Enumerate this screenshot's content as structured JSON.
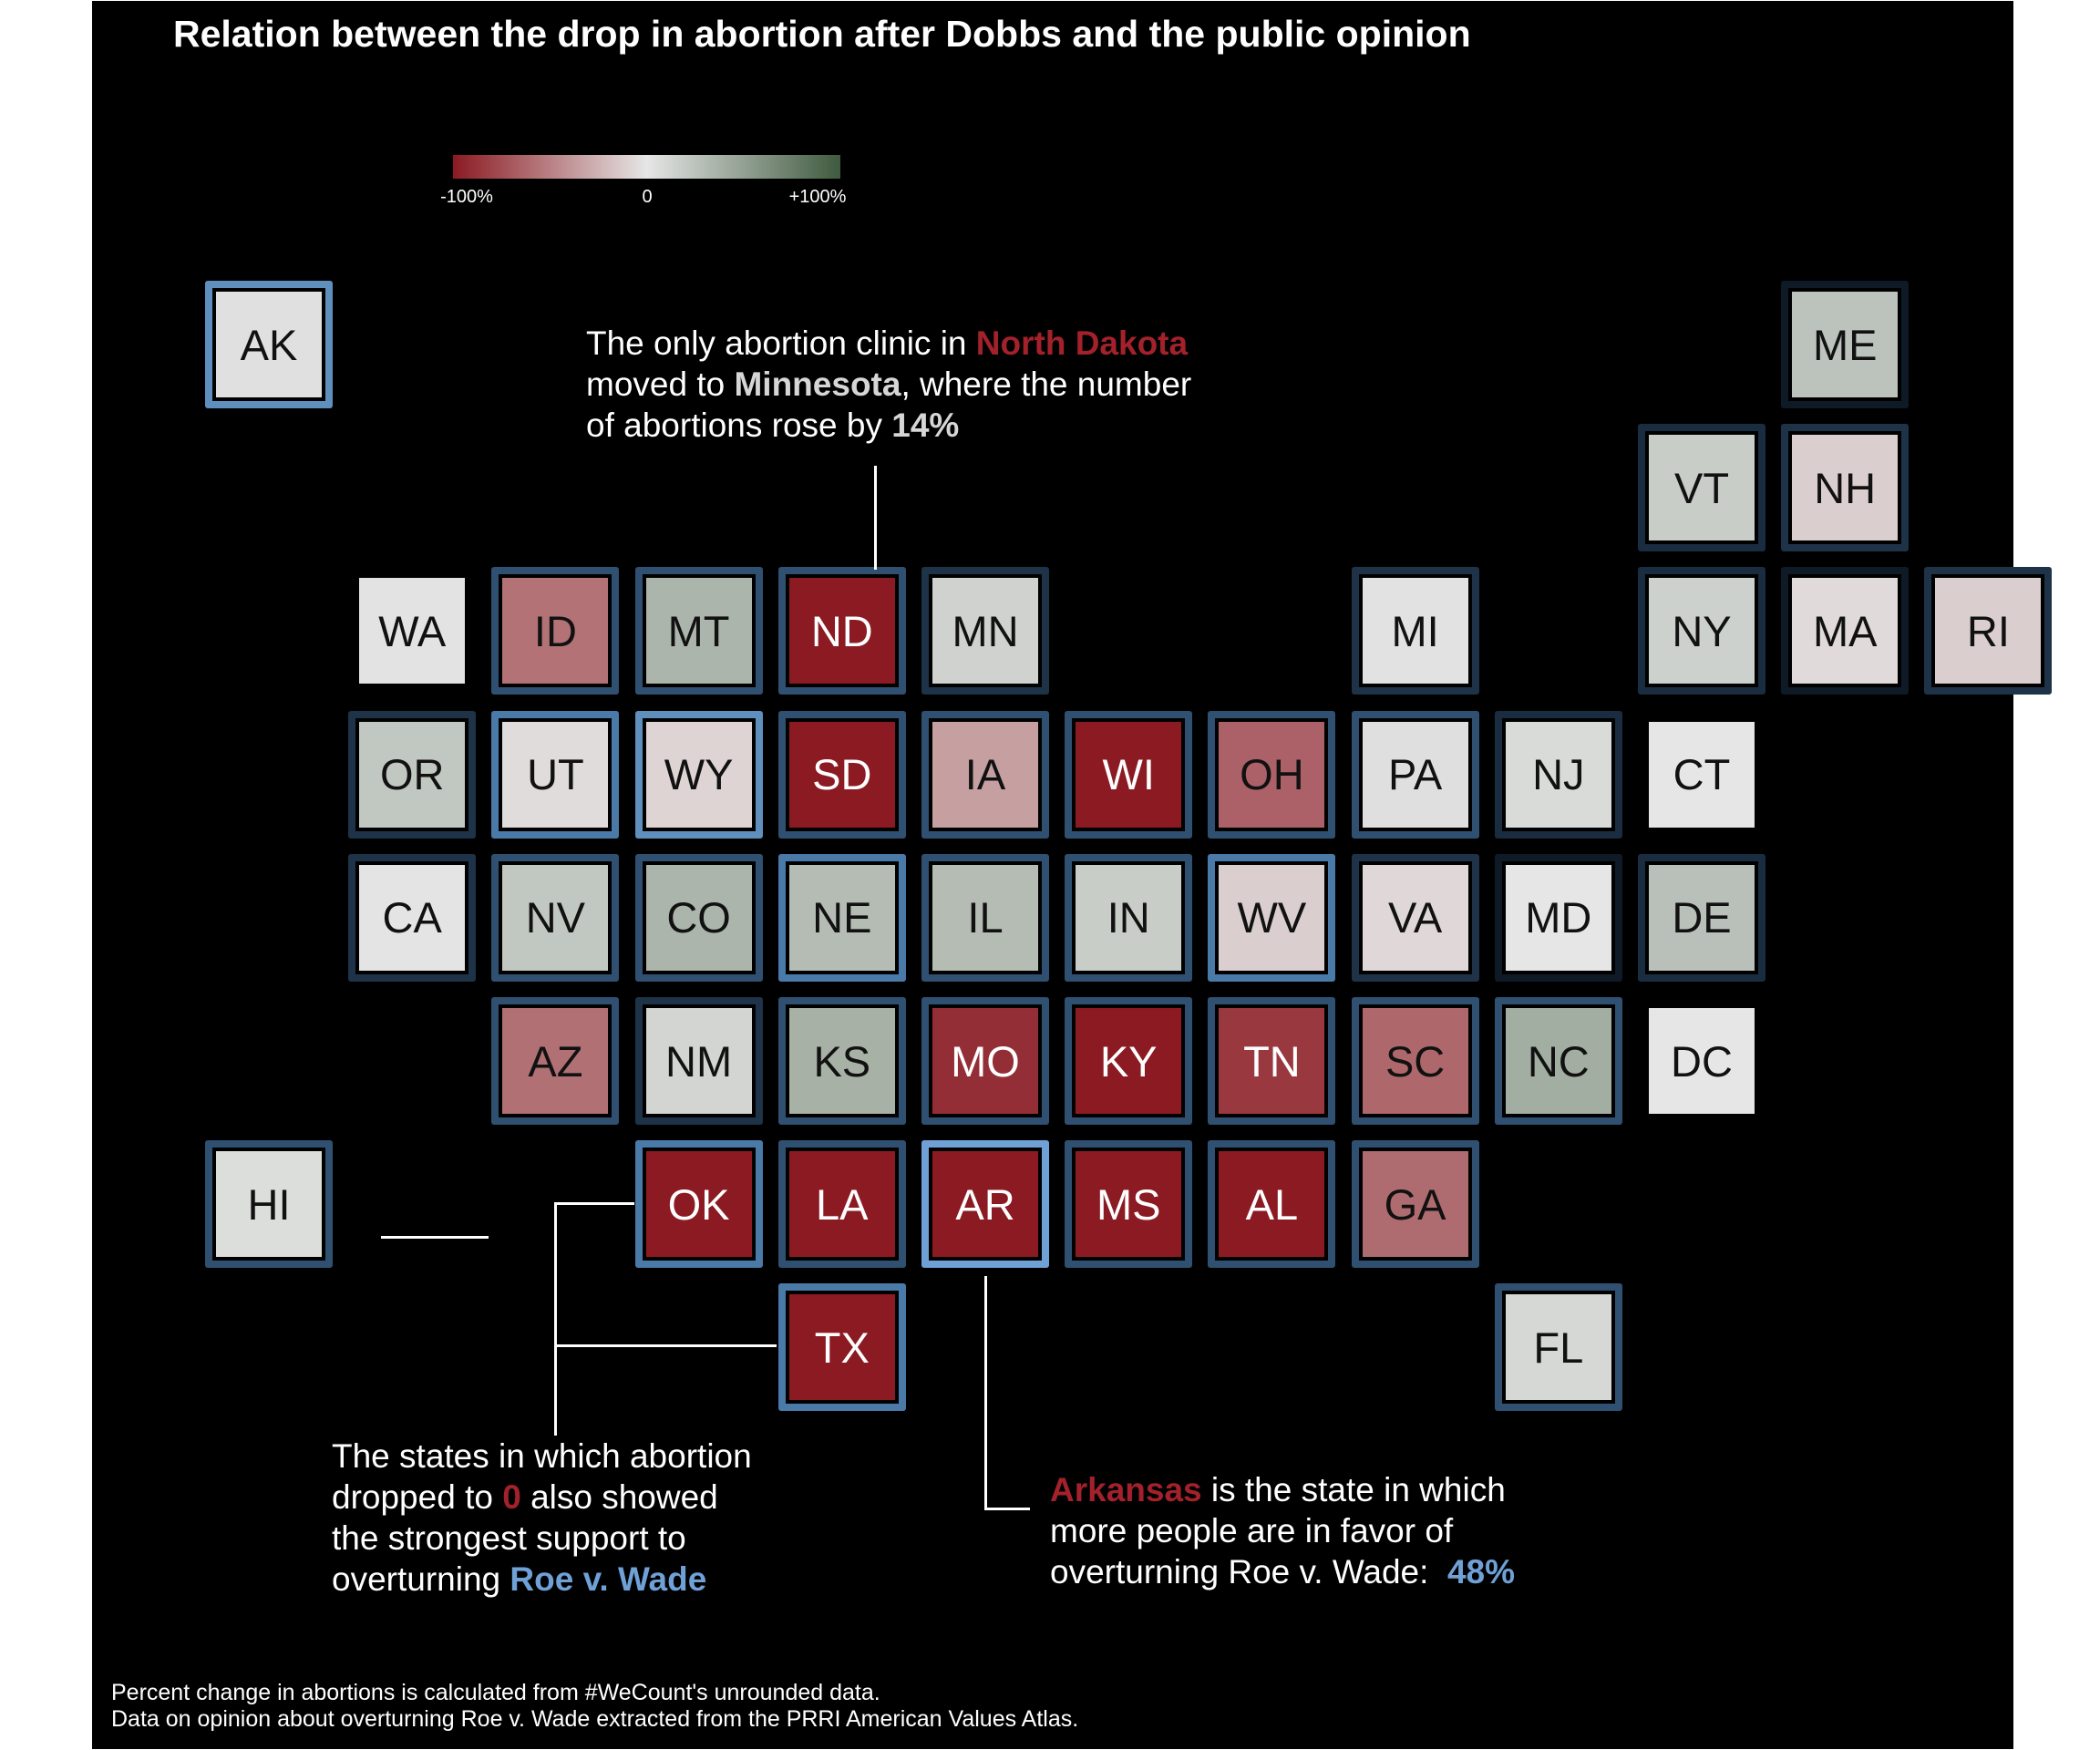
{
  "title": "Relation between the drop in abortion after Dobbs and the public opinion",
  "legend": {
    "label_min": "-100%",
    "label_mid": "0",
    "label_max": "+100%",
    "colors": [
      "#8b1a22",
      "#e6e6e6",
      "#3f5a3e"
    ]
  },
  "chart_data": {
    "type": "heatmap",
    "title": "Relation between the drop in abortion after Dobbs and the public opinion",
    "value_meaning": "approximate percent change in abortions (fill color, -100 to +100); outline color = support for overturning Roe v. Wade",
    "color_scale": {
      "min": -100,
      "mid": 0,
      "max": 100
    },
    "tiles": [
      {
        "state": "AK",
        "col": 0,
        "row": 0,
        "change": 4,
        "outline": "#5f8fbd"
      },
      {
        "state": "ME",
        "col": 11,
        "row": 0,
        "change": 25,
        "outline": "#0e1a26"
      },
      {
        "state": "VT",
        "col": 10,
        "row": 1,
        "change": 18,
        "outline": "#1a2c40"
      },
      {
        "state": "NH",
        "col": 11,
        "row": 1,
        "change": -12,
        "outline": "#1e3248"
      },
      {
        "state": "WA",
        "col": 1,
        "row": 2,
        "change": 2,
        "outline": "#000000"
      },
      {
        "state": "ID",
        "col": 2,
        "row": 2,
        "change": -57,
        "outline": "#2f5070"
      },
      {
        "state": "MT",
        "col": 3,
        "row": 2,
        "change": 35,
        "outline": "#2f5070"
      },
      {
        "state": "ND",
        "col": 4,
        "row": 2,
        "change": -100,
        "outline": "#2f5070"
      },
      {
        "state": "MN",
        "col": 5,
        "row": 2,
        "change": 14,
        "outline": "#1e3248"
      },
      {
        "state": "MI",
        "col": 8,
        "row": 2,
        "change": 3,
        "outline": "#1e3248"
      },
      {
        "state": "NY",
        "col": 10,
        "row": 2,
        "change": 15,
        "outline": "#1a2c40"
      },
      {
        "state": "MA",
        "col": 11,
        "row": 2,
        "change": -6,
        "outline": "#0e1a26"
      },
      {
        "state": "RI",
        "col": 12,
        "row": 2,
        "change": -12,
        "outline": "#1e3248"
      },
      {
        "state": "OR",
        "col": 1,
        "row": 3,
        "change": 22,
        "outline": "#1e3248"
      },
      {
        "state": "UT",
        "col": 2,
        "row": 3,
        "change": -5,
        "outline": "#4a7aa8"
      },
      {
        "state": "WY",
        "col": 3,
        "row": 3,
        "change": -9,
        "outline": "#5f8fbd"
      },
      {
        "state": "SD",
        "col": 4,
        "row": 3,
        "change": -100,
        "outline": "#2f5070"
      },
      {
        "state": "IA",
        "col": 5,
        "row": 3,
        "change": -35,
        "outline": "#2f5070"
      },
      {
        "state": "WI",
        "col": 6,
        "row": 3,
        "change": -100,
        "outline": "#2f5070"
      },
      {
        "state": "OH",
        "col": 7,
        "row": 3,
        "change": -65,
        "outline": "#2f5070"
      },
      {
        "state": "PA",
        "col": 8,
        "row": 3,
        "change": 5,
        "outline": "#2f5070"
      },
      {
        "state": "NJ",
        "col": 9,
        "row": 3,
        "change": 8,
        "outline": "#1a2c40"
      },
      {
        "state": "CT",
        "col": 10,
        "row": 3,
        "change": 0,
        "outline": "#000000"
      },
      {
        "state": "CA",
        "col": 1,
        "row": 4,
        "change": -1,
        "outline": "#1e3248"
      },
      {
        "state": "NV",
        "col": 2,
        "row": 4,
        "change": 22,
        "outline": "#2f5070"
      },
      {
        "state": "CO",
        "col": 3,
        "row": 4,
        "change": 35,
        "outline": "#2f5070"
      },
      {
        "state": "NE",
        "col": 4,
        "row": 4,
        "change": 30,
        "outline": "#4a7aa8"
      },
      {
        "state": "IL",
        "col": 5,
        "row": 4,
        "change": 30,
        "outline": "#2f5070"
      },
      {
        "state": "IN",
        "col": 6,
        "row": 4,
        "change": 18,
        "outline": "#2f5070"
      },
      {
        "state": "WV",
        "col": 7,
        "row": 4,
        "change": -12,
        "outline": "#4a7aa8"
      },
      {
        "state": "VA",
        "col": 8,
        "row": 4,
        "change": -7,
        "outline": "#1e3248"
      },
      {
        "state": "MD",
        "col": 9,
        "row": 4,
        "change": 0,
        "outline": "#0e1a26"
      },
      {
        "state": "DE",
        "col": 10,
        "row": 4,
        "change": 27,
        "outline": "#1a2c40"
      },
      {
        "state": "AZ",
        "col": 2,
        "row": 5,
        "change": -58,
        "outline": "#2f5070"
      },
      {
        "state": "NM",
        "col": 3,
        "row": 5,
        "change": 12,
        "outline": "#1e3248"
      },
      {
        "state": "KS",
        "col": 4,
        "row": 5,
        "change": 38,
        "outline": "#2f5070"
      },
      {
        "state": "MO",
        "col": 5,
        "row": 5,
        "change": -90,
        "outline": "#2f5070"
      },
      {
        "state": "KY",
        "col": 6,
        "row": 5,
        "change": -100,
        "outline": "#2f5070"
      },
      {
        "state": "TN",
        "col": 7,
        "row": 5,
        "change": -85,
        "outline": "#2f5070"
      },
      {
        "state": "SC",
        "col": 8,
        "row": 5,
        "change": -62,
        "outline": "#2f5070"
      },
      {
        "state": "NC",
        "col": 9,
        "row": 5,
        "change": 40,
        "outline": "#2f5070"
      },
      {
        "state": "DC",
        "col": 10,
        "row": 5,
        "change": 0,
        "outline": "#000000"
      },
      {
        "state": "HI",
        "col": 0,
        "row": 6,
        "change": 6,
        "outline": "#2f5070"
      },
      {
        "state": "OK",
        "col": 3,
        "row": 6,
        "change": -100,
        "outline": "#4a7aa8"
      },
      {
        "state": "LA",
        "col": 4,
        "row": 6,
        "change": -100,
        "outline": "#2f5070"
      },
      {
        "state": "AR",
        "col": 5,
        "row": 6,
        "change": -100,
        "outline": "#6fa0d6"
      },
      {
        "state": "MS",
        "col": 6,
        "row": 6,
        "change": -100,
        "outline": "#2f5070"
      },
      {
        "state": "AL",
        "col": 7,
        "row": 6,
        "change": -100,
        "outline": "#2f5070"
      },
      {
        "state": "GA",
        "col": 8,
        "row": 6,
        "change": -60,
        "outline": "#2f5070"
      },
      {
        "state": "TX",
        "col": 4,
        "row": 7,
        "change": -100,
        "outline": "#4a7aa8"
      },
      {
        "state": "FL",
        "col": 9,
        "row": 7,
        "change": 10,
        "outline": "#2f5070"
      }
    ]
  },
  "annotations": {
    "nd": {
      "l1a": "The only abortion clinic in ",
      "l1b": "North Dakota",
      "l2a": "moved to ",
      "l2b": "Minnesota",
      "l2c": ", where the number",
      "l3a": "of abortions rose by ",
      "l3b": "14%"
    },
    "zero": {
      "l1": "The states in which abortion",
      "l2a": "dropped to ",
      "l2b": "0",
      "l2c": " also showed",
      "l3": "the strongest support to",
      "l4a": "overturning ",
      "l4b": "Roe v. Wade"
    },
    "ar": {
      "l1a": "Arkansas",
      "l1b": " is the state in which",
      "l2": "more people are in favor of",
      "l3a": "overturning Roe v. Wade:  ",
      "l3b": "48%"
    }
  },
  "caption": {
    "line1": "Percent change in abortions is calculated from #WeCount's unrounded data.",
    "line2": "Data on opinion about overturning Roe v. Wade extracted from the PRRI American Values Atlas."
  }
}
